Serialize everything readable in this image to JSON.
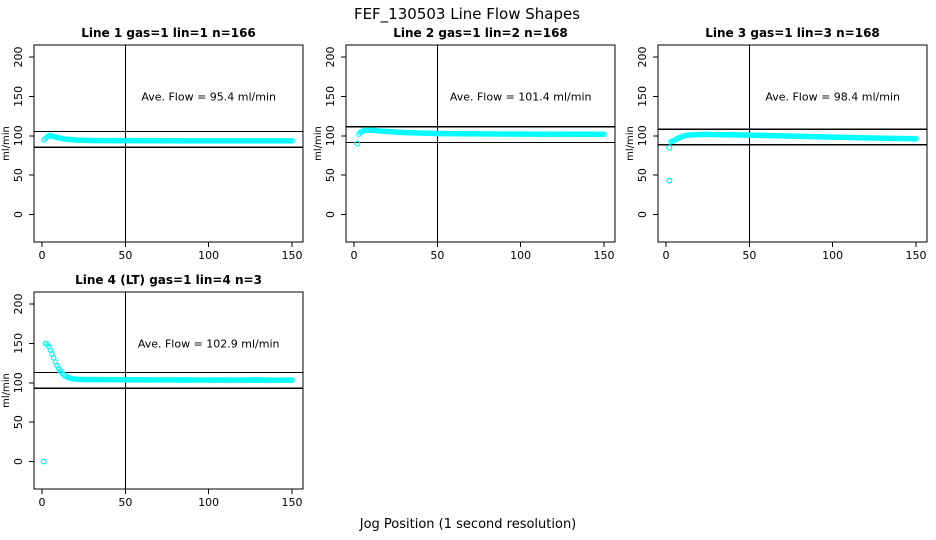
{
  "page_title": "FEF_130503  Line Flow Shapes",
  "xlabel": "Jog Position (1 second resolution)",
  "colors": {
    "points": "#00ffff",
    "axis": "#000000",
    "background": "#ffffff"
  },
  "chart_data": [
    {
      "type": "scatter",
      "title": "Line 1 gas=1 lin=1 n=166",
      "annotation": "Ave. Flow =  95.4  ml/min",
      "ave_flow": 95.4,
      "n": 166,
      "ylabel": "ml/min",
      "x_ticks": [
        0,
        50,
        100,
        150
      ],
      "y_ticks": [
        0,
        50,
        100,
        150,
        200
      ],
      "xlim": [
        0,
        155
      ],
      "ylim": [
        0,
        200
      ],
      "vline_x": 50,
      "hlines": [
        105.4,
        85.4
      ],
      "grid": false,
      "outliers": [],
      "anchors": [
        [
          1,
          94.5
        ],
        [
          2,
          96.5
        ],
        [
          3,
          98.5
        ],
        [
          4,
          99.8
        ],
        [
          5,
          100.2
        ],
        [
          6,
          99.6
        ],
        [
          8,
          98.4
        ],
        [
          10,
          97.4
        ],
        [
          12,
          96.5
        ],
        [
          15,
          95.5
        ],
        [
          20,
          94.6
        ],
        [
          25,
          94.2
        ],
        [
          30,
          94.0
        ],
        [
          40,
          93.8
        ],
        [
          60,
          93.7
        ],
        [
          90,
          93.6
        ],
        [
          120,
          93.6
        ],
        [
          150,
          93.6
        ]
      ]
    },
    {
      "type": "scatter",
      "title": "Line 2 gas=1 lin=2 n=168",
      "annotation": "Ave. Flow =  101.4  ml/min",
      "ave_flow": 101.4,
      "n": 168,
      "ylabel": "ml/min",
      "x_ticks": [
        0,
        50,
        100,
        150
      ],
      "y_ticks": [
        0,
        50,
        100,
        150,
        200
      ],
      "xlim": [
        0,
        155
      ],
      "ylim": [
        0,
        200
      ],
      "vline_x": 50,
      "hlines": [
        111.4,
        91.4
      ],
      "grid": false,
      "outliers": [
        [
          2,
          90
        ]
      ],
      "anchors": [
        [
          3,
          102
        ],
        [
          4,
          104.5
        ],
        [
          5,
          105.8
        ],
        [
          6,
          106.6
        ],
        [
          8,
          107.2
        ],
        [
          10,
          107.1
        ],
        [
          12,
          106.8
        ],
        [
          15,
          106.2
        ],
        [
          20,
          105.4
        ],
        [
          25,
          104.7
        ],
        [
          30,
          104.1
        ],
        [
          40,
          103.4
        ],
        [
          50,
          102.9
        ],
        [
          60,
          102.6
        ],
        [
          80,
          102.3
        ],
        [
          100,
          102.1
        ],
        [
          120,
          102.0
        ],
        [
          150,
          101.9
        ]
      ]
    },
    {
      "type": "scatter",
      "title": "Line 3 gas=1 lin=3 n=168",
      "annotation": "Ave. Flow =  98.4  ml/min",
      "ave_flow": 98.4,
      "n": 168,
      "ylabel": "ml/min",
      "x_ticks": [
        0,
        50,
        100,
        150
      ],
      "y_ticks": [
        0,
        50,
        100,
        150,
        200
      ],
      "xlim": [
        0,
        155
      ],
      "ylim": [
        0,
        200
      ],
      "vline_x": 50,
      "hlines": [
        108.4,
        88.4
      ],
      "grid": false,
      "outliers": [
        [
          2,
          43
        ],
        [
          2,
          85
        ]
      ],
      "anchors": [
        [
          3,
          92.5
        ],
        [
          4,
          93.2
        ],
        [
          5,
          94.2
        ],
        [
          6,
          95.5
        ],
        [
          8,
          97.6
        ],
        [
          10,
          99.2
        ],
        [
          12,
          100.3
        ],
        [
          15,
          101.1
        ],
        [
          20,
          101.6
        ],
        [
          25,
          101.7
        ],
        [
          30,
          101.5
        ],
        [
          40,
          101.2
        ],
        [
          50,
          100.8
        ],
        [
          60,
          100.3
        ],
        [
          80,
          99.3
        ],
        [
          100,
          98.3
        ],
        [
          120,
          97.3
        ],
        [
          135,
          96.7
        ],
        [
          150,
          96.2
        ]
      ]
    },
    {
      "type": "scatter",
      "title": "Line 4 (LT) gas=1 lin=4 n=3",
      "annotation": "Ave. Flow =  102.9  ml/min",
      "ave_flow": 102.9,
      "n": 3,
      "ylabel": "ml/min",
      "x_ticks": [
        0,
        50,
        100,
        150
      ],
      "y_ticks": [
        0,
        50,
        100,
        150,
        200
      ],
      "xlim": [
        0,
        155
      ],
      "ylim": [
        0,
        200
      ],
      "vline_x": 50,
      "hlines": [
        112.9,
        92.9
      ],
      "grid": false,
      "outliers": [
        [
          1,
          0
        ]
      ],
      "anchors": [
        [
          2,
          150
        ],
        [
          3,
          149.5
        ],
        [
          4,
          146
        ],
        [
          5,
          141.5
        ],
        [
          6,
          136.5
        ],
        [
          7,
          131.5
        ],
        [
          8,
          126.5
        ],
        [
          9,
          122
        ],
        [
          10,
          118
        ],
        [
          11,
          114.8
        ],
        [
          12,
          112.2
        ],
        [
          13,
          110.2
        ],
        [
          14,
          108.6
        ],
        [
          15,
          107.4
        ],
        [
          16,
          106.4
        ],
        [
          18,
          105.2
        ],
        [
          20,
          104.6
        ],
        [
          22,
          104.3
        ],
        [
          25,
          104.1
        ],
        [
          30,
          104.0
        ],
        [
          40,
          103.9
        ],
        [
          60,
          103.7
        ],
        [
          90,
          103.5
        ],
        [
          120,
          103.4
        ],
        [
          150,
          103.3
        ]
      ]
    }
  ]
}
